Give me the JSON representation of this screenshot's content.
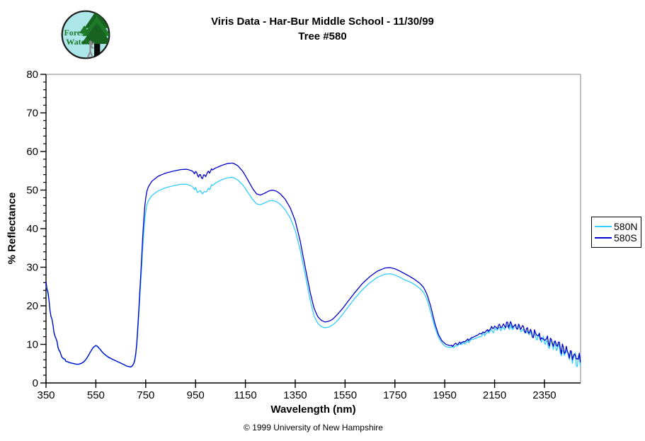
{
  "header": {
    "title_line1": "Viris Data - Har-Bur Middle School - 11/30/99",
    "title_line2": "Tree #580",
    "logo": {
      "line1": "Forest",
      "line2": "Watch"
    }
  },
  "footer": {
    "copyright": "© 1999 University of New Hampshire"
  },
  "colors": {
    "series_580N": "#33CCFF",
    "series_580S": "#0000CC",
    "plot_border_gray": "#808080",
    "axis_black": "#000000",
    "logo_fill": "#ACE6E8",
    "logo_green": "#1E7A28",
    "logo_dark_green": "#134F1B"
  },
  "chart_data": {
    "type": "line",
    "title": "Viris Data - Har-Bur Middle School - 11/30/99 — Tree #580",
    "xlabel": "Wavelength (nm)",
    "ylabel": "% Reflectance",
    "xlim": [
      350,
      2495
    ],
    "ylim": [
      0,
      80
    ],
    "x_ticks": [
      350,
      550,
      750,
      950,
      1150,
      1350,
      1550,
      1750,
      1950,
      2150,
      2350
    ],
    "y_ticks": [
      0,
      10,
      20,
      30,
      40,
      50,
      60,
      70,
      80
    ],
    "y_minor_step": 2,
    "grid": false,
    "legend_position": "right-outside",
    "series": [
      {
        "name": "580N",
        "color": "#33CCFF",
        "points": [
          [
            350,
            26
          ],
          [
            355,
            24
          ],
          [
            360,
            22
          ],
          [
            370,
            17.5
          ],
          [
            380,
            14
          ],
          [
            390,
            11
          ],
          [
            400,
            9
          ],
          [
            410,
            7.2
          ],
          [
            420,
            6.2
          ],
          [
            430,
            5.6
          ],
          [
            440,
            5.3
          ],
          [
            450,
            5.1
          ],
          [
            460,
            5.0
          ],
          [
            470,
            4.8
          ],
          [
            480,
            4.8
          ],
          [
            490,
            5.0
          ],
          [
            500,
            5.3
          ],
          [
            510,
            6.0
          ],
          [
            520,
            7.0
          ],
          [
            530,
            8.2
          ],
          [
            540,
            9.2
          ],
          [
            550,
            9.6
          ],
          [
            555,
            9.5
          ],
          [
            565,
            8.8
          ],
          [
            580,
            7.6
          ],
          [
            600,
            6.6
          ],
          [
            620,
            6.0
          ],
          [
            640,
            5.4
          ],
          [
            660,
            4.8
          ],
          [
            675,
            4.3
          ],
          [
            690,
            4.1
          ],
          [
            700,
            4.6
          ],
          [
            708,
            6.0
          ],
          [
            715,
            10
          ],
          [
            722,
            17
          ],
          [
            730,
            26
          ],
          [
            738,
            35
          ],
          [
            745,
            41.5
          ],
          [
            752,
            45.5
          ],
          [
            760,
            47.2
          ],
          [
            775,
            48.6
          ],
          [
            800,
            49.8
          ],
          [
            830,
            50.6
          ],
          [
            860,
            51.1
          ],
          [
            890,
            51.5
          ],
          [
            915,
            51.5
          ],
          [
            935,
            51.0
          ],
          [
            950,
            50.2
          ],
          [
            965,
            49.5
          ],
          [
            980,
            49.2
          ],
          [
            995,
            49.8
          ],
          [
            1010,
            50.8
          ],
          [
            1030,
            51.8
          ],
          [
            1055,
            52.7
          ],
          [
            1080,
            53.2
          ],
          [
            1100,
            53.3
          ],
          [
            1120,
            52.6
          ],
          [
            1140,
            51.3
          ],
          [
            1160,
            49.4
          ],
          [
            1180,
            47.5
          ],
          [
            1195,
            46.4
          ],
          [
            1210,
            46.2
          ],
          [
            1225,
            46.6
          ],
          [
            1245,
            47.2
          ],
          [
            1260,
            47.3
          ],
          [
            1275,
            47.0
          ],
          [
            1290,
            46.3
          ],
          [
            1310,
            44.9
          ],
          [
            1330,
            42.8
          ],
          [
            1350,
            39.5
          ],
          [
            1370,
            34.5
          ],
          [
            1390,
            28
          ],
          [
            1410,
            21.5
          ],
          [
            1425,
            17.5
          ],
          [
            1440,
            15.5
          ],
          [
            1455,
            14.6
          ],
          [
            1470,
            14.3
          ],
          [
            1485,
            14.5
          ],
          [
            1500,
            15.0
          ],
          [
            1520,
            16.2
          ],
          [
            1540,
            17.8
          ],
          [
            1560,
            19.5
          ],
          [
            1590,
            22.0
          ],
          [
            1620,
            24.2
          ],
          [
            1650,
            26.0
          ],
          [
            1680,
            27.4
          ],
          [
            1710,
            28.2
          ],
          [
            1730,
            28.3
          ],
          [
            1750,
            28.0
          ],
          [
            1770,
            27.4
          ],
          [
            1790,
            26.7
          ],
          [
            1810,
            26.2
          ],
          [
            1830,
            25.5
          ],
          [
            1850,
            24.5
          ],
          [
            1865,
            23.5
          ],
          [
            1880,
            21.5
          ],
          [
            1895,
            18
          ],
          [
            1910,
            14.5
          ],
          [
            1925,
            11.8
          ],
          [
            1940,
            10.2
          ],
          [
            1955,
            9.4
          ],
          [
            1970,
            9.2
          ],
          [
            1985,
            9.3
          ],
          [
            2000,
            9.7
          ],
          [
            2015,
            10.0
          ],
          [
            2030,
            10.3
          ],
          [
            2050,
            10.9
          ],
          [
            2075,
            11.6
          ],
          [
            2100,
            12.3
          ],
          [
            2130,
            13.2
          ],
          [
            2160,
            13.9
          ],
          [
            2190,
            14.3
          ],
          [
            2215,
            14.4
          ],
          [
            2240,
            14.1
          ],
          [
            2265,
            13.5
          ],
          [
            2290,
            12.7
          ],
          [
            2315,
            11.9
          ],
          [
            2340,
            11.0
          ],
          [
            2365,
            10.2
          ],
          [
            2390,
            9.4
          ],
          [
            2415,
            8.5
          ],
          [
            2440,
            7.6
          ],
          [
            2465,
            6.6
          ],
          [
            2480,
            6.0
          ],
          [
            2495,
            5.5
          ]
        ]
      },
      {
        "name": "580S",
        "color": "#0000CC",
        "points": [
          [
            350,
            26.5
          ],
          [
            355,
            24.5
          ],
          [
            360,
            22.3
          ],
          [
            370,
            17.8
          ],
          [
            380,
            14.2
          ],
          [
            390,
            11.2
          ],
          [
            400,
            9.1
          ],
          [
            410,
            7.3
          ],
          [
            420,
            6.3
          ],
          [
            430,
            5.7
          ],
          [
            440,
            5.4
          ],
          [
            450,
            5.2
          ],
          [
            460,
            5.05
          ],
          [
            470,
            4.9
          ],
          [
            480,
            4.85
          ],
          [
            490,
            5.05
          ],
          [
            500,
            5.4
          ],
          [
            510,
            6.1
          ],
          [
            520,
            7.1
          ],
          [
            530,
            8.3
          ],
          [
            540,
            9.3
          ],
          [
            550,
            9.7
          ],
          [
            555,
            9.6
          ],
          [
            565,
            8.9
          ],
          [
            580,
            7.7
          ],
          [
            600,
            6.7
          ],
          [
            620,
            6.05
          ],
          [
            640,
            5.45
          ],
          [
            660,
            4.85
          ],
          [
            675,
            4.35
          ],
          [
            690,
            4.15
          ],
          [
            700,
            4.7
          ],
          [
            708,
            6.3
          ],
          [
            715,
            10.8
          ],
          [
            722,
            18.5
          ],
          [
            730,
            28
          ],
          [
            738,
            38
          ],
          [
            745,
            45
          ],
          [
            752,
            49
          ],
          [
            760,
            50.8
          ],
          [
            775,
            52.3
          ],
          [
            800,
            53.6
          ],
          [
            830,
            54.4
          ],
          [
            860,
            54.9
          ],
          [
            890,
            55.3
          ],
          [
            915,
            55.4
          ],
          [
            935,
            55.0
          ],
          [
            950,
            54.3
          ],
          [
            965,
            53.7
          ],
          [
            980,
            53.4
          ],
          [
            995,
            54.0
          ],
          [
            1010,
            54.9
          ],
          [
            1030,
            55.7
          ],
          [
            1055,
            56.4
          ],
          [
            1080,
            56.9
          ],
          [
            1100,
            57.0
          ],
          [
            1120,
            56.3
          ],
          [
            1140,
            54.8
          ],
          [
            1160,
            52.6
          ],
          [
            1180,
            50.3
          ],
          [
            1195,
            49.0
          ],
          [
            1210,
            48.7
          ],
          [
            1225,
            49.1
          ],
          [
            1245,
            49.8
          ],
          [
            1260,
            50.0
          ],
          [
            1275,
            49.7
          ],
          [
            1290,
            49.0
          ],
          [
            1310,
            47.6
          ],
          [
            1330,
            45.4
          ],
          [
            1350,
            42
          ],
          [
            1370,
            36.8
          ],
          [
            1390,
            30
          ],
          [
            1410,
            23.5
          ],
          [
            1425,
            19.5
          ],
          [
            1440,
            17.2
          ],
          [
            1455,
            16.2
          ],
          [
            1470,
            15.8
          ],
          [
            1485,
            16.0
          ],
          [
            1500,
            16.5
          ],
          [
            1520,
            17.8
          ],
          [
            1540,
            19.3
          ],
          [
            1560,
            21.0
          ],
          [
            1590,
            23.5
          ],
          [
            1620,
            25.8
          ],
          [
            1650,
            27.6
          ],
          [
            1680,
            29.0
          ],
          [
            1710,
            29.8
          ],
          [
            1730,
            29.9
          ],
          [
            1750,
            29.6
          ],
          [
            1770,
            29.0
          ],
          [
            1790,
            28.3
          ],
          [
            1810,
            27.6
          ],
          [
            1830,
            26.8
          ],
          [
            1850,
            25.8
          ],
          [
            1865,
            24.8
          ],
          [
            1880,
            22.8
          ],
          [
            1895,
            19.5
          ],
          [
            1910,
            15.5
          ],
          [
            1925,
            12.5
          ],
          [
            1940,
            10.8
          ],
          [
            1955,
            10.0
          ],
          [
            1970,
            9.7
          ],
          [
            1985,
            9.8
          ],
          [
            2000,
            10.2
          ],
          [
            2015,
            10.5
          ],
          [
            2030,
            10.8
          ],
          [
            2050,
            11.4
          ],
          [
            2075,
            12.2
          ],
          [
            2100,
            13.0
          ],
          [
            2130,
            13.9
          ],
          [
            2160,
            14.6
          ],
          [
            2190,
            15.0
          ],
          [
            2215,
            15.1
          ],
          [
            2240,
            14.8
          ],
          [
            2265,
            14.2
          ],
          [
            2290,
            13.4
          ],
          [
            2315,
            12.5
          ],
          [
            2340,
            11.6
          ],
          [
            2365,
            10.8
          ],
          [
            2390,
            10.0
          ],
          [
            2415,
            9.0
          ],
          [
            2440,
            8.0
          ],
          [
            2465,
            7.0
          ],
          [
            2480,
            6.4
          ],
          [
            2495,
            5.8
          ]
        ]
      }
    ],
    "noise_bands": [
      {
        "from": 350,
        "to": 430,
        "amp": 0.8,
        "amp_end": 0.15
      },
      {
        "from": 940,
        "to": 1015,
        "amp": 0.45,
        "amp_end": 0.45
      },
      {
        "from": 1975,
        "to": 2060,
        "amp": 0.3,
        "amp_end": 0.3
      },
      {
        "from": 2090,
        "to": 2495,
        "amp": 0.35,
        "amp_end": 1.6
      }
    ]
  }
}
